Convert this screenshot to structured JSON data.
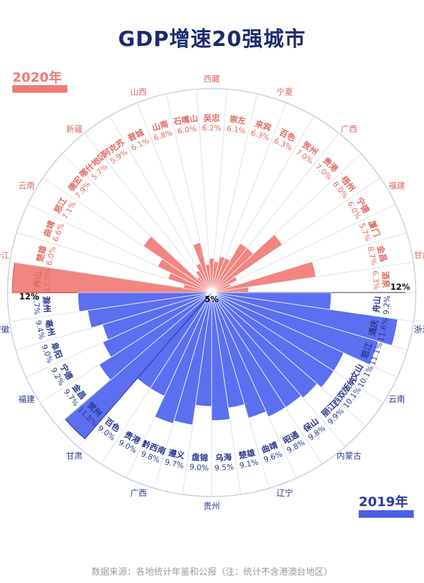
{
  "title": "GDP增速20强城市",
  "legend": {
    "top_year": "2020年",
    "bottom_year": "2019年"
  },
  "axis": {
    "left_max_label": "12%",
    "right_max_label": "12%",
    "center_label": "5%"
  },
  "source": "数据来源：各地统计年鉴和公报（注：统计不含港澳台地区）",
  "colors": {
    "top": "#f28580",
    "top_dark": "#f08a85",
    "top_text": "#e06a65",
    "bottom": "#5b6ff0",
    "bottom_text": "#2b3890",
    "bottom_outline": "#2c3aa6",
    "line": "#d7d9e6",
    "text": "#1c2a6e"
  },
  "chart_data": [
    {
      "type": "bar",
      "series": [
        {
          "name": "2020年",
          "values": [
            12,
            6.0,
            6.6,
            7.1,
            7.9,
            5.7,
            5.9,
            6.1,
            6.8,
            6.0,
            6.2,
            6.1,
            6.3,
            6.3,
            7.0,
            7.0,
            8.0,
            6.0,
            5.7,
            8.7,
            6.3
          ]
        }
      ],
      "categories": [
        "舟山",
        "楚雄",
        "曲靖",
        "怒江",
        "德宏",
        "喀什地区",
        "阿克苏",
        "晋城",
        "山南",
        "石嘴山",
        "吴忠",
        "崇左",
        "来宾",
        "百色",
        "贺州",
        "贵港",
        "梧州",
        "宁德",
        "厦门",
        "金昌",
        "酒泉"
      ],
      "provinces": [
        "浙江",
        "云南",
        "新疆",
        "山西",
        "西藏",
        "宁夏",
        "广西",
        "福建",
        "甘肃"
      ]
    },
    {
      "type": "bar",
      "series": [
        {
          "name": "2019年",
          "values": [
            9.2,
            11.6,
            11.1,
            10.1,
            10.1,
            9.9,
            9.8,
            9.8,
            9.6,
            9.1,
            9.5,
            9.0,
            9.7,
            9.8,
            9.0,
            9.0,
            11.8,
            9.7,
            9.2,
            9.0,
            9.4,
            9.7
          ]
        }
      ],
      "categories": [
        "舟山",
        "通庆",
        "怒江",
        "文山",
        "西双版纳",
        "丽江",
        "保山",
        "昭通",
        "曲靖",
        "楚雄",
        "乌海",
        "盘锦",
        "遵义",
        "黔西南",
        "贵港",
        "百色",
        "贺州",
        "金昌",
        "宁德",
        "阜阳",
        "亳州",
        "滁州"
      ],
      "provinces": [
        "浙江",
        "云南",
        "内蒙古",
        "辽宁",
        "贵州",
        "广西",
        "甘肃",
        "福建",
        "安徽"
      ]
    }
  ]
}
